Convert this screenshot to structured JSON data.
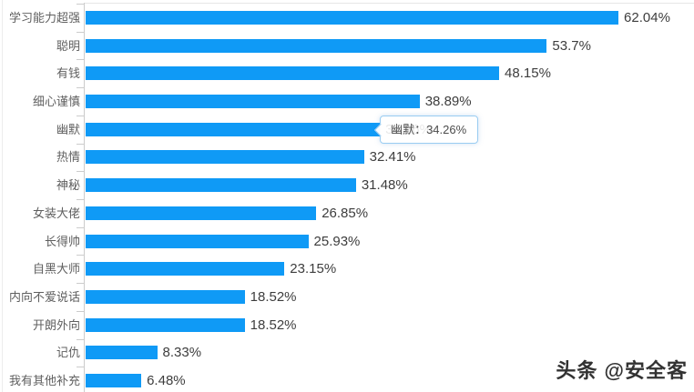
{
  "chart_data": {
    "type": "bar",
    "orientation": "horizontal",
    "title": "",
    "xlabel": "",
    "ylabel": "",
    "categories": [
      "学习能力超强",
      "聪明",
      "有钱",
      "细心谨慎",
      "幽默",
      "热情",
      "神秘",
      "女装大佬",
      "长得帅",
      "自黑大师",
      "内向不爱说话",
      "开朗外向",
      "记仇",
      "我有其他补充"
    ],
    "values": [
      62.04,
      53.7,
      48.15,
      38.89,
      34.26,
      32.41,
      31.48,
      26.85,
      25.93,
      23.15,
      18.52,
      18.52,
      8.33,
      6.48
    ],
    "value_labels": [
      "62.04%",
      "53.7%",
      "48.15%",
      "38.89%",
      "34.26%",
      "32.41%",
      "31.48%",
      "26.85%",
      "25.93%",
      "23.15%",
      "18.52%",
      "18.52%",
      "8.33%",
      "6.48%"
    ],
    "unit": "%",
    "xlim": [
      0,
      70
    ],
    "grid": false,
    "legend_position": "none",
    "bar_color": "#0f9af6",
    "axis_color": "#cccccc",
    "category_label_color": "#5f5f5f",
    "value_label_color": "#3d3d3d"
  },
  "tooltip": {
    "category": "幽默",
    "value_label": "34.26%",
    "text": "幽默：34.26%",
    "border_color": "#99ccf2",
    "background": "rgba(255,255,255,0.88)"
  },
  "watermark": {
    "text": "头条 @安全客"
  }
}
